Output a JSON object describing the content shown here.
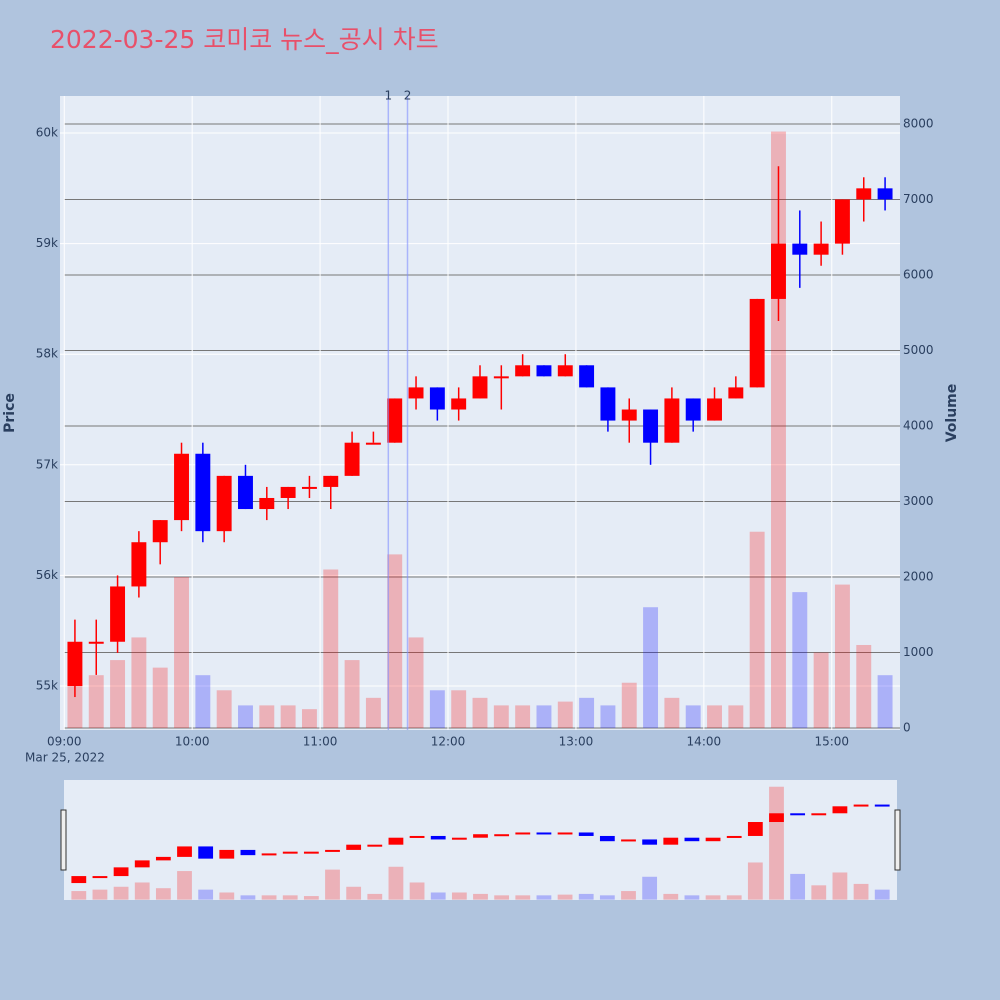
{
  "chart_data": {
    "type": "candlestick",
    "title": "2022-03-25 코미코 뉴스_공시 차트",
    "y_title": "Price",
    "y2_title": "Volume",
    "x_date_label": "Mar 25, 2022",
    "up_color": "#ff0000",
    "down_color": "#0000ff",
    "x": [
      "2022-03-25 09:00",
      "2022-03-25 09:10",
      "2022-03-25 09:20",
      "2022-03-25 09:30",
      "2022-03-25 09:40",
      "2022-03-25 09:50",
      "2022-03-25 10:00",
      "2022-03-25 10:10",
      "2022-03-25 10:20",
      "2022-03-25 10:30",
      "2022-03-25 10:40",
      "2022-03-25 10:50",
      "2022-03-25 11:00",
      "2022-03-25 11:10",
      "2022-03-25 11:20",
      "2022-03-25 11:30",
      "2022-03-25 11:40",
      "2022-03-25 11:50",
      "2022-03-25 12:00",
      "2022-03-25 12:10",
      "2022-03-25 12:20",
      "2022-03-25 12:30",
      "2022-03-25 12:40",
      "2022-03-25 12:50",
      "2022-03-25 13:00",
      "2022-03-25 13:10",
      "2022-03-25 13:20",
      "2022-03-25 13:30",
      "2022-03-25 13:40",
      "2022-03-25 13:50",
      "2022-03-25 14:00",
      "2022-03-25 14:10",
      "2022-03-25 14:20",
      "2022-03-25 14:30",
      "2022-03-25 14:40",
      "2022-03-25 14:50",
      "2022-03-25 15:00",
      "2022-03-25 15:10",
      "2022-03-25 15:20"
    ],
    "open": [
      55000,
      55400,
      55400,
      55900,
      56300,
      56500,
      57100,
      56400,
      56900,
      56600,
      56700,
      56800,
      56800,
      56900,
      57200,
      57200,
      57600,
      57700,
      57500,
      57600,
      57800,
      57800,
      57900,
      57800,
      57900,
      57700,
      57400,
      57500,
      57200,
      57600,
      57400,
      57600,
      57700,
      58500,
      59000,
      58900,
      59000,
      59400,
      59500
    ],
    "high": [
      55600,
      55600,
      56000,
      56400,
      56500,
      57200,
      57200,
      56900,
      57000,
      56800,
      56800,
      56900,
      56900,
      57300,
      57300,
      57600,
      57800,
      57700,
      57700,
      57900,
      57900,
      58000,
      57900,
      58000,
      57900,
      57700,
      57600,
      57500,
      57700,
      57600,
      57700,
      57800,
      58500,
      59700,
      59300,
      59200,
      59400,
      59600,
      59600
    ],
    "low": [
      54900,
      55100,
      55300,
      55800,
      56100,
      56400,
      56300,
      56300,
      56600,
      56500,
      56600,
      56700,
      56600,
      56900,
      57200,
      57200,
      57500,
      57400,
      57400,
      57600,
      57500,
      57800,
      57800,
      57800,
      57700,
      57300,
      57200,
      57000,
      57200,
      57300,
      57400,
      57600,
      57700,
      58300,
      58600,
      58800,
      58900,
      59200,
      59300
    ],
    "close": [
      55400,
      55400,
      55900,
      56300,
      56500,
      57100,
      56400,
      56900,
      56600,
      56700,
      56800,
      56800,
      56900,
      57200,
      57200,
      57600,
      57700,
      57500,
      57600,
      57800,
      57800,
      57900,
      57800,
      57900,
      57700,
      57400,
      57500,
      57200,
      57600,
      57400,
      57600,
      57700,
      58500,
      59000,
      58900,
      59000,
      59400,
      59500,
      59400
    ],
    "volume": [
      600,
      700,
      900,
      1200,
      800,
      2000,
      700,
      500,
      300,
      300,
      300,
      250,
      2100,
      900,
      400,
      2300,
      1200,
      500,
      500,
      400,
      300,
      300,
      300,
      350,
      400,
      300,
      600,
      1600,
      400,
      300,
      300,
      300,
      2600,
      7900,
      1800,
      1000,
      1900,
      1100,
      700
    ],
    "xlim": [
      "2022-03-25 08:58",
      "2022-03-25 15:32"
    ],
    "xticks": [
      {
        "value": "2022-03-25 09:00",
        "label": "09:00"
      },
      {
        "value": "2022-03-25 10:00",
        "label": "10:00"
      },
      {
        "value": "2022-03-25 11:00",
        "label": "11:00"
      },
      {
        "value": "2022-03-25 12:00",
        "label": "12:00"
      },
      {
        "value": "2022-03-25 13:00",
        "label": "13:00"
      },
      {
        "value": "2022-03-25 14:00",
        "label": "14:00"
      },
      {
        "value": "2022-03-25 15:00",
        "label": "15:00"
      }
    ],
    "ylim": [
      54602,
      60335
    ],
    "yticks": [
      {
        "value": 55000,
        "label": "55k"
      },
      {
        "value": 56000,
        "label": "56k"
      },
      {
        "value": 57000,
        "label": "57k"
      },
      {
        "value": 58000,
        "label": "58k"
      },
      {
        "value": 59000,
        "label": "59k"
      },
      {
        "value": 60000,
        "label": "60k"
      }
    ],
    "y2lim": [
      -26,
      8371
    ],
    "y2ticks": [
      0,
      1000,
      2000,
      3000,
      4000,
      5000,
      6000,
      7000,
      8000
    ],
    "events": [
      {
        "x": "2022-03-25 11:32",
        "label": "1"
      },
      {
        "x": "2022-03-25 11:41",
        "label": "2"
      }
    ]
  }
}
